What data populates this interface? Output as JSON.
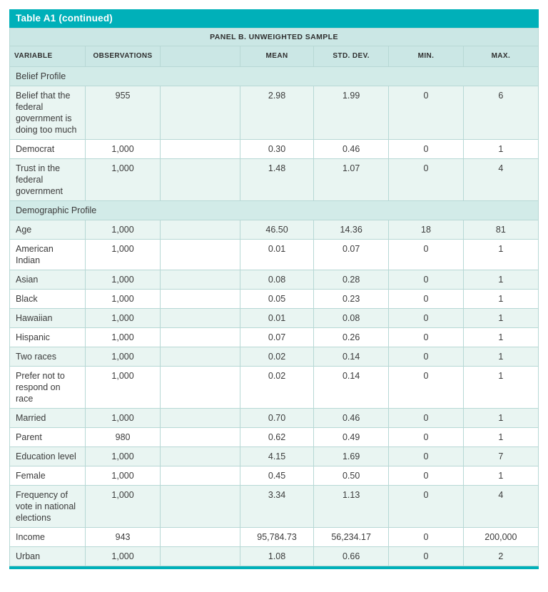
{
  "table": {
    "title": "Table A1 (continued)",
    "panel_label": "PANEL B. UNWEIGHTED SAMPLE",
    "columns": [
      {
        "key": "variable",
        "label": "VARIABLE"
      },
      {
        "key": "observations",
        "label": "OBSERVATIONS"
      },
      {
        "key": "spacer",
        "label": ""
      },
      {
        "key": "mean",
        "label": "MEAN"
      },
      {
        "key": "std-dev",
        "label": "STD. DEV."
      },
      {
        "key": "min",
        "label": "MIN."
      },
      {
        "key": "max",
        "label": "MAX."
      }
    ],
    "sections": [
      {
        "label": "Belief Profile",
        "rows": [
          {
            "variable": "Belief that the federal government is doing too much",
            "observations": "955",
            "mean": "2.98",
            "std_dev": "1.99",
            "min": "0",
            "max": "6"
          },
          {
            "variable": "Democrat",
            "observations": "1,000",
            "mean": "0.30",
            "std_dev": "0.46",
            "min": "0",
            "max": "1"
          },
          {
            "variable": "Trust in the federal government",
            "observations": "1,000",
            "mean": "1.48",
            "std_dev": "1.07",
            "min": "0",
            "max": "4"
          }
        ]
      },
      {
        "label": "Demographic Profile",
        "rows": [
          {
            "variable": "Age",
            "observations": "1,000",
            "mean": "46.50",
            "std_dev": "14.36",
            "min": "18",
            "max": "81"
          },
          {
            "variable": "American Indian",
            "observations": "1,000",
            "mean": "0.01",
            "std_dev": "0.07",
            "min": "0",
            "max": "1"
          },
          {
            "variable": "Asian",
            "observations": "1,000",
            "mean": "0.08",
            "std_dev": "0.28",
            "min": "0",
            "max": "1"
          },
          {
            "variable": "Black",
            "observations": "1,000",
            "mean": "0.05",
            "std_dev": "0.23",
            "min": "0",
            "max": "1"
          },
          {
            "variable": "Hawaiian",
            "observations": "1,000",
            "mean": "0.01",
            "std_dev": "0.08",
            "min": "0",
            "max": "1"
          },
          {
            "variable": "Hispanic",
            "observations": "1,000",
            "mean": "0.07",
            "std_dev": "0.26",
            "min": "0",
            "max": "1"
          },
          {
            "variable": "Two races",
            "observations": "1,000",
            "mean": "0.02",
            "std_dev": "0.14",
            "min": "0",
            "max": "1"
          },
          {
            "variable": "Prefer not to respond on race",
            "observations": "1,000",
            "mean": "0.02",
            "std_dev": "0.14",
            "min": "0",
            "max": "1"
          },
          {
            "variable": "Married",
            "observations": "1,000",
            "mean": "0.70",
            "std_dev": "0.46",
            "min": "0",
            "max": "1"
          },
          {
            "variable": "Parent",
            "observations": "980",
            "mean": "0.62",
            "std_dev": "0.49",
            "min": "0",
            "max": "1"
          },
          {
            "variable": "Education level",
            "observations": "1,000",
            "mean": "4.15",
            "std_dev": "1.69",
            "min": "0",
            "max": "7"
          },
          {
            "variable": "Female",
            "observations": "1,000",
            "mean": "0.45",
            "std_dev": "0.50",
            "min": "0",
            "max": "1"
          },
          {
            "variable": "Frequency of vote in national elections",
            "observations": "1,000",
            "mean": "3.34",
            "std_dev": "1.13",
            "min": "0",
            "max": "4"
          },
          {
            "variable": "Income",
            "observations": "943",
            "mean": "95,784.73",
            "std_dev": "56,234.17",
            "min": "0",
            "max": "200,000"
          },
          {
            "variable": "Urban",
            "observations": "1,000",
            "mean": "1.08",
            "std_dev": "0.66",
            "min": "0",
            "max": "2"
          }
        ]
      }
    ],
    "colors": {
      "accent_teal": "#00b0b9",
      "header_bg": "#cbe7e5",
      "section_bg": "#d2ebe8",
      "stripe_bg": "#e9f5f2",
      "border": "#b7d8d5"
    }
  }
}
